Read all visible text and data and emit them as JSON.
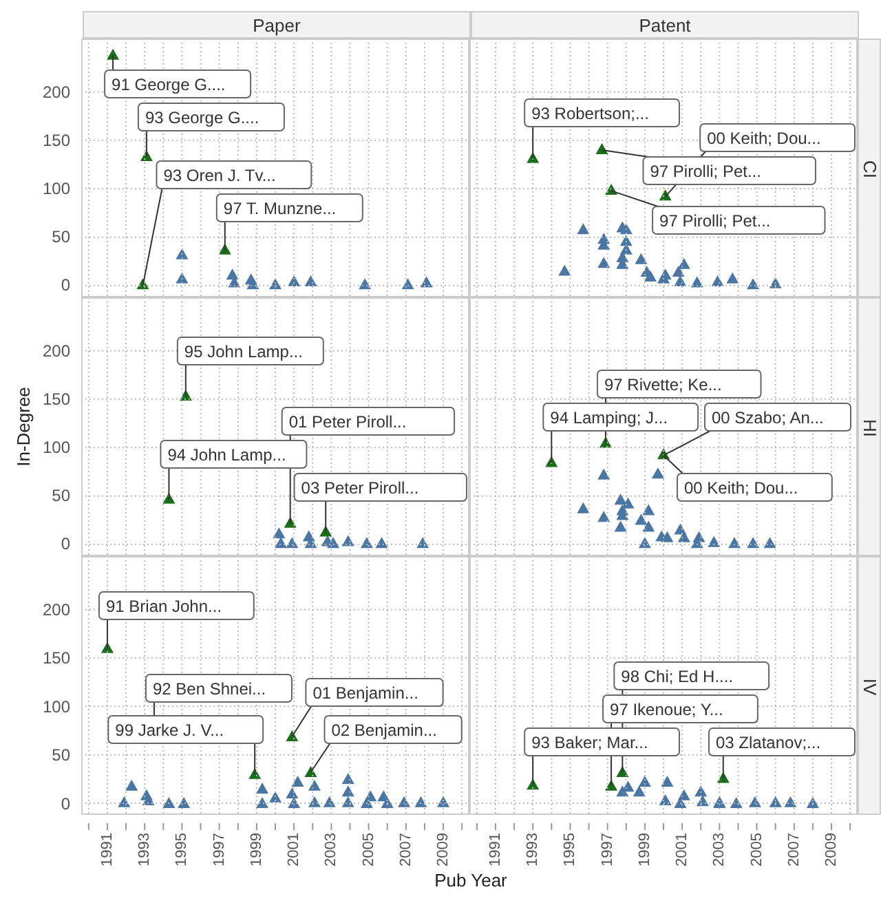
{
  "chart_data": [
    {
      "type": "scatter",
      "title": "Paper",
      "marker": "triangle",
      "grid": true,
      "tick_labels": "y",
      "xlim": [
        1989.6,
        2010.4
      ],
      "ylim": [
        -12,
        255
      ],
      "yticks": [
        0,
        50,
        100,
        150,
        200
      ],
      "xticks": [
        {
          "value": 1990,
          "label": null
        },
        1991,
        {
          "value": 1992,
          "label": null
        },
        1993,
        {
          "value": 1994,
          "label": null
        },
        1995,
        {
          "value": 1996,
          "label": null
        },
        1997,
        {
          "value": 1998,
          "label": null
        },
        1999,
        {
          "value": 2000,
          "label": null
        },
        2001,
        {
          "value": 2002,
          "label": null
        },
        2003,
        {
          "value": 2004,
          "label": null
        },
        2005,
        {
          "value": 2006,
          "label": null
        },
        2007,
        {
          "value": 2008,
          "label": null
        },
        2009,
        {
          "value": 2010,
          "label": null
        }
      ],
      "series": [
        {
          "color": "#4a76a3",
          "x": [
            1995,
            1995,
            1997.7,
            1997.8,
            1998.7,
            1998.8,
            2000,
            2001,
            2001.9,
            2004.8,
            2007.1,
            2008.1
          ],
          "values": [
            31,
            6,
            10,
            2,
            5,
            0,
            0,
            3,
            3,
            0,
            0,
            2
          ]
        },
        {
          "color": "#1a6e1a",
          "x": [
            1991.3,
            1993.1,
            1992.9,
            1997.3
          ],
          "values": [
            238,
            133,
            0,
            36
          ]
        }
      ],
      "annotations": [
        {
          "text": "91 George G....",
          "x": 1991.3,
          "y": 238
        },
        {
          "text": "93 George G....",
          "x": 1993.1,
          "y": 133
        },
        {
          "text": "97 T. Munzne...",
          "x": 1997.3,
          "y": 36
        },
        {
          "text": "93 Oren J. Tv...",
          "x": 1992.9,
          "y": 0
        }
      ]
    },
    {
      "type": "scatter",
      "title": "Patent",
      "y2label": "CI",
      "marker": "triangle",
      "grid": true,
      "tick_labels": false,
      "xlim": [
        1989.6,
        2010.4
      ],
      "ylim": [
        -12,
        255
      ],
      "yticks": [
        0,
        50,
        100,
        150,
        200
      ],
      "xticks": [
        {
          "value": 1990,
          "label": null
        },
        1991,
        {
          "value": 1992,
          "label": null
        },
        1993,
        {
          "value": 1994,
          "label": null
        },
        1995,
        {
          "value": 1996,
          "label": null
        },
        1997,
        {
          "value": 1998,
          "label": null
        },
        1999,
        {
          "value": 2000,
          "label": null
        },
        2001,
        {
          "value": 2002,
          "label": null
        },
        2003,
        {
          "value": 2004,
          "label": null
        },
        2005,
        {
          "value": 2006,
          "label": null
        },
        2007,
        {
          "value": 2008,
          "label": null
        },
        2009,
        {
          "value": 2010,
          "label": null
        }
      ],
      "series": [
        {
          "color": "#4a76a3",
          "x": [
            1994.7,
            1995.7,
            1996.8,
            1996.8,
            1996.8,
            1997.8,
            1998,
            1998,
            1998,
            1997.8,
            1997.8,
            1998.8,
            1999.1,
            1999.3,
            2000,
            2000.1,
            2000.8,
            2001.1,
            2000.9,
            2001.8,
            2002.9,
            2003.7,
            2004.8,
            2006
          ],
          "values": [
            14,
            57,
            47,
            41,
            22,
            59,
            57,
            45,
            36,
            28,
            21,
            26,
            13,
            8,
            6,
            10,
            13,
            21,
            3,
            2,
            3,
            6,
            0,
            1
          ]
        },
        {
          "color": "#1a6e1a",
          "x": [
            1993,
            1996.7,
            1997.2,
            2000.1
          ],
          "values": [
            131,
            140,
            98,
            92
          ]
        }
      ],
      "annotations": [
        {
          "text": "93 Robertson;...",
          "x": 1993,
          "y": 131
        },
        {
          "text": "97 Pirolli; Pet...",
          "x": 1996.7,
          "y": 140
        },
        {
          "text": "97 Pirolli; Pet...",
          "x": 1997.2,
          "y": 98
        },
        {
          "text": "00 Keith; Dou...",
          "x": 2000.1,
          "y": 92
        }
      ]
    },
    {
      "type": "scatter",
      "ylabel": "In-Degree",
      "marker": "triangle",
      "grid": true,
      "tick_labels": "y",
      "xlim": [
        1989.6,
        2010.4
      ],
      "ylim": [
        -12,
        255
      ],
      "yticks": [
        0,
        50,
        100,
        150,
        200
      ],
      "xticks": [
        {
          "value": 1990,
          "label": null
        },
        1991,
        {
          "value": 1992,
          "label": null
        },
        1993,
        {
          "value": 1994,
          "label": null
        },
        1995,
        {
          "value": 1996,
          "label": null
        },
        1997,
        {
          "value": 1998,
          "label": null
        },
        1999,
        {
          "value": 2000,
          "label": null
        },
        2001,
        {
          "value": 2002,
          "label": null
        },
        2003,
        {
          "value": 2004,
          "label": null
        },
        2005,
        {
          "value": 2006,
          "label": null
        },
        2007,
        {
          "value": 2008,
          "label": null
        },
        2009,
        {
          "value": 2010,
          "label": null
        }
      ],
      "series": [
        {
          "color": "#4a76a3",
          "x": [
            2000.2,
            2000.3,
            2000.9,
            2001.8,
            2001.9,
            2002.8,
            2003.1,
            2003.9,
            2004.9,
            2005.7,
            2007.9
          ],
          "values": [
            10,
            0,
            0,
            7,
            0,
            2,
            0,
            2,
            0,
            0,
            0
          ]
        },
        {
          "color": "#1a6e1a",
          "x": [
            1995.2,
            1994.3,
            2000.8,
            2002.7
          ],
          "values": [
            153,
            46,
            21,
            12
          ]
        }
      ],
      "annotations": [
        {
          "text": "95 John Lamp...",
          "x": 1995.2,
          "y": 153
        },
        {
          "text": "03 Peter Piroll...",
          "x": 2002.7,
          "y": 12
        },
        {
          "text": "94 John Lamp...",
          "x": 1994.3,
          "y": 46
        },
        {
          "text": "01 Peter Piroll...",
          "x": 2000.8,
          "y": 21
        }
      ]
    },
    {
      "type": "scatter",
      "y2label": "HI",
      "marker": "triangle",
      "grid": true,
      "tick_labels": false,
      "xlim": [
        1989.6,
        2010.4
      ],
      "ylim": [
        -12,
        255
      ],
      "yticks": [
        0,
        50,
        100,
        150,
        200
      ],
      "xticks": [
        {
          "value": 1990,
          "label": null
        },
        1991,
        {
          "value": 1992,
          "label": null
        },
        1993,
        {
          "value": 1994,
          "label": null
        },
        1995,
        {
          "value": 1996,
          "label": null
        },
        1997,
        {
          "value": 1998,
          "label": null
        },
        1999,
        {
          "value": 2000,
          "label": null
        },
        2001,
        {
          "value": 2002,
          "label": null
        },
        2003,
        {
          "value": 2004,
          "label": null
        },
        2005,
        {
          "value": 2006,
          "label": null
        },
        2007,
        {
          "value": 2008,
          "label": null
        },
        2009,
        {
          "value": 2010,
          "label": null
        }
      ],
      "series": [
        {
          "color": "#4a76a3",
          "x": [
            1995.7,
            1996.8,
            1996.8,
            1997.7,
            1998.1,
            1997.8,
            1997.8,
            1997.7,
            1998.8,
            1999.2,
            1999.2,
            1999.7,
            1999,
            1999.9,
            2000.2,
            2000.9,
            2001.1,
            2001.9,
            2001.8,
            2002.7,
            2003.8,
            2004.8,
            2005.7
          ],
          "values": [
            36,
            71,
            27,
            45,
            41,
            34,
            29,
            17,
            24,
            34,
            17,
            72,
            0,
            7,
            6,
            14,
            6,
            6,
            0,
            1,
            0,
            0,
            0
          ]
        },
        {
          "color": "#1a6e1a",
          "x": [
            1994,
            1996.9,
            2000
          ],
          "values": [
            84,
            104,
            92
          ]
        }
      ],
      "annotations": [
        {
          "text": "94 Lamping; J...",
          "x": 1994,
          "y": 84
        },
        {
          "text": "97 Rivette; Ke...",
          "x": 1996.9,
          "y": 104
        },
        {
          "text": "00 Keith; Dou...",
          "x": 2000,
          "y": 92
        },
        {
          "text": "00 Szabo; An...",
          "x": 2000,
          "y": 92
        }
      ]
    },
    {
      "type": "scatter",
      "xlabel": "Pub Year",
      "marker": "triangle",
      "grid": true,
      "xlim": [
        1989.6,
        2010.4
      ],
      "ylim": [
        -12,
        255
      ],
      "yticks": [
        0,
        50,
        100,
        150,
        200
      ],
      "xticks": [
        {
          "value": 1990,
          "label": null
        },
        1991,
        {
          "value": 1992,
          "label": null
        },
        1993,
        {
          "value": 1994,
          "label": null
        },
        1995,
        {
          "value": 1996,
          "label": null
        },
        1997,
        {
          "value": 1998,
          "label": null
        },
        1999,
        {
          "value": 2000,
          "label": null
        },
        2001,
        {
          "value": 2002,
          "label": null
        },
        2003,
        {
          "value": 2004,
          "label": null
        },
        2005,
        {
          "value": 2006,
          "label": null
        },
        2007,
        {
          "value": 2008,
          "label": null
        },
        2009,
        {
          "value": 2010,
          "label": null
        }
      ],
      "series": [
        {
          "color": "#4a76a3",
          "x": [
            1991.9,
            1992.3,
            1993.1,
            1993.2,
            1994.3,
            1995.1,
            1999.3,
            1999.3,
            2000,
            2000.9,
            2001.2,
            2001,
            2002.1,
            2002.1,
            2002.9,
            2003.9,
            2003.9,
            2003.9,
            2005.1,
            2004.9,
            2005.8,
            2006,
            2006.9,
            2007.8,
            2009
          ],
          "values": [
            1,
            18,
            8,
            3,
            0,
            0,
            15,
            0,
            6,
            10,
            22,
            0,
            18,
            1,
            1,
            25,
            12,
            1,
            7,
            0,
            7,
            0,
            1,
            1,
            1
          ]
        },
        {
          "color": "#1a6e1a",
          "x": [
            1991,
            1998.9,
            2000.9,
            2001.9
          ],
          "values": [
            160,
            30,
            69,
            32
          ]
        }
      ],
      "annotations": [
        {
          "text": "91 Brian John...",
          "x": 1991,
          "y": 160
        },
        "92 Ben Shnei...",
        {
          "text": "99 Jarke J. V...",
          "x": 1998.9,
          "y": 30
        },
        {
          "text": "01 Benjamin...",
          "x": 2000.9,
          "y": 69
        },
        {
          "text": "02 Benjamin...",
          "x": 2001.9,
          "y": 32
        }
      ]
    },
    {
      "type": "scatter",
      "y2label": "IV",
      "marker": "triangle",
      "grid": true,
      "tick_labels": "x",
      "xlim": [
        1989.6,
        2010.4
      ],
      "ylim": [
        -12,
        255
      ],
      "yticks": [
        0,
        50,
        100,
        150,
        200
      ],
      "xticks": [
        {
          "value": 1990,
          "label": null
        },
        1991,
        {
          "value": 1992,
          "label": null
        },
        1993,
        {
          "value": 1994,
          "label": null
        },
        1995,
        {
          "value": 1996,
          "label": null
        },
        1997,
        {
          "value": 1998,
          "label": null
        },
        1999,
        {
          "value": 2000,
          "label": null
        },
        2001,
        {
          "value": 2002,
          "label": null
        },
        2003,
        {
          "value": 2004,
          "label": null
        },
        2005,
        {
          "value": 2006,
          "label": null
        },
        2007,
        {
          "value": 2008,
          "label": null
        },
        2009,
        {
          "value": 2010,
          "label": null
        }
      ],
      "series": [
        {
          "color": "#4a76a3",
          "x": [
            1997.8,
            1998.1,
            1998.7,
            1999,
            2000.2,
            2000.1,
            2001.1,
            2000.9,
            2002,
            2002.1,
            2003,
            2003,
            2003.9,
            2004.9,
            2006,
            2006.8,
            2008
          ],
          "values": [
            12,
            17,
            12,
            22,
            22,
            3,
            8,
            0,
            12,
            2,
            1,
            0,
            0,
            1,
            1,
            1,
            0
          ]
        },
        {
          "color": "#1a6e1a",
          "x": [
            1993,
            1997.2,
            1997.8,
            2003.2
          ],
          "values": [
            19,
            18,
            32,
            26
          ]
        }
      ],
      "annotations": [
        {
          "text": "93 Baker; Mar...",
          "x": 1993,
          "y": 19
        },
        {
          "text": "97 Ikenoue; Y...",
          "x": 1997.2,
          "y": 18
        },
        {
          "text": "98 Chi; Ed H....",
          "x": 1997.8,
          "y": 32
        },
        {
          "text": "03 Zlatanov;...",
          "x": 2003.2,
          "y": 26
        }
      ]
    }
  ]
}
